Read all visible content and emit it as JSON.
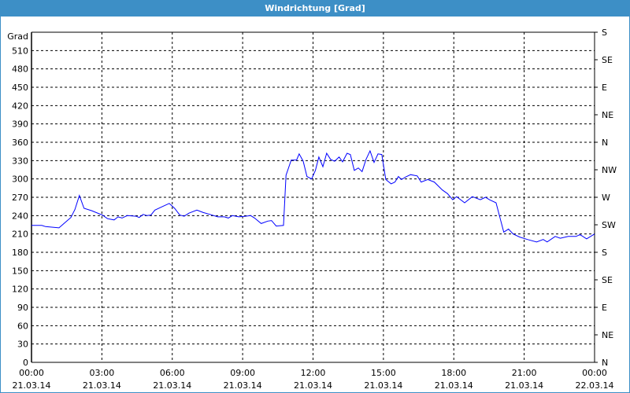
{
  "window": {
    "title": "Windrichtung [Grad]"
  },
  "chart_data": {
    "type": "line",
    "title": "Windrichtung [Grad]",
    "ylabel": "Grad",
    "xlabel": "",
    "ylim": [
      0,
      540
    ],
    "xlim_hours": [
      0,
      24
    ],
    "grid": true,
    "y_ticks": [
      0,
      30,
      60,
      90,
      120,
      150,
      180,
      210,
      240,
      270,
      300,
      330,
      360,
      390,
      420,
      450,
      480,
      510
    ],
    "right_axis_ticks": [
      {
        "value": 0,
        "label": "N"
      },
      {
        "value": 45,
        "label": "NE"
      },
      {
        "value": 90,
        "label": "E"
      },
      {
        "value": 135,
        "label": "SE"
      },
      {
        "value": 180,
        "label": "S"
      },
      {
        "value": 225,
        "label": "SW"
      },
      {
        "value": 270,
        "label": "W"
      },
      {
        "value": 315,
        "label": "NW"
      },
      {
        "value": 360,
        "label": "N"
      },
      {
        "value": 405,
        "label": "NE"
      },
      {
        "value": 450,
        "label": "E"
      },
      {
        "value": 495,
        "label": "SE"
      },
      {
        "value": 540,
        "label": "S"
      }
    ],
    "x_ticks": [
      {
        "hour": 0,
        "time": "00:00",
        "date": "21.03.14"
      },
      {
        "hour": 3,
        "time": "03:00",
        "date": "21.03.14"
      },
      {
        "hour": 6,
        "time": "06:00",
        "date": "21.03.14"
      },
      {
        "hour": 9,
        "time": "09:00",
        "date": "21.03.14"
      },
      {
        "hour": 12,
        "time": "12:00",
        "date": "21.03.14"
      },
      {
        "hour": 15,
        "time": "15:00",
        "date": "21.03.14"
      },
      {
        "hour": 18,
        "time": "18:00",
        "date": "21.03.14"
      },
      {
        "hour": 21,
        "time": "21:00",
        "date": "21.03.14"
      },
      {
        "hour": 24,
        "time": "00:00",
        "date": "22.03.14"
      }
    ],
    "series_color": "#0000ff",
    "series": [
      {
        "points": [
          [
            0,
            224
          ],
          [
            0.44,
            224
          ],
          [
            0.6,
            222
          ],
          [
            1.17,
            220
          ],
          [
            1.44,
            229
          ],
          [
            1.68,
            237
          ],
          [
            1.85,
            250
          ],
          [
            2.04,
            273
          ],
          [
            2.24,
            252
          ],
          [
            2.57,
            248
          ],
          [
            3.02,
            241
          ],
          [
            3.24,
            235
          ],
          [
            3.52,
            233
          ],
          [
            3.69,
            238
          ],
          [
            3.86,
            236
          ],
          [
            4.08,
            240
          ],
          [
            4.46,
            239
          ],
          [
            4.59,
            237
          ],
          [
            4.76,
            242
          ],
          [
            4.92,
            240
          ],
          [
            5.09,
            241
          ],
          [
            5.26,
            249
          ],
          [
            5.59,
            255
          ],
          [
            5.87,
            260
          ],
          [
            6.1,
            252
          ],
          [
            6.32,
            241
          ],
          [
            6.51,
            239
          ],
          [
            6.71,
            244
          ],
          [
            7.05,
            249
          ],
          [
            7.32,
            245
          ],
          [
            7.61,
            242
          ],
          [
            7.94,
            238
          ],
          [
            8.22,
            238
          ],
          [
            8.39,
            236
          ],
          [
            8.56,
            240
          ],
          [
            8.84,
            238
          ],
          [
            9.12,
            239
          ],
          [
            9.34,
            240
          ],
          [
            9.51,
            236
          ],
          [
            9.79,
            227
          ],
          [
            10.07,
            231
          ],
          [
            10.23,
            232
          ],
          [
            10.43,
            223
          ],
          [
            10.74,
            224
          ],
          [
            10.85,
            306
          ],
          [
            11.07,
            331
          ],
          [
            11.3,
            331
          ],
          [
            11.41,
            341
          ],
          [
            11.58,
            329
          ],
          [
            11.74,
            304
          ],
          [
            11.94,
            300
          ],
          [
            12.1,
            314
          ],
          [
            12.25,
            336
          ],
          [
            12.42,
            320
          ],
          [
            12.58,
            342
          ],
          [
            12.75,
            332
          ],
          [
            12.92,
            329
          ],
          [
            13.11,
            336
          ],
          [
            13.26,
            328
          ],
          [
            13.45,
            342
          ],
          [
            13.59,
            340
          ],
          [
            13.76,
            314
          ],
          [
            13.93,
            318
          ],
          [
            14.09,
            312
          ],
          [
            14.26,
            332
          ],
          [
            14.43,
            346
          ],
          [
            14.6,
            327
          ],
          [
            14.77,
            341
          ],
          [
            14.93,
            340
          ],
          [
            15.1,
            299
          ],
          [
            15.33,
            292
          ],
          [
            15.49,
            295
          ],
          [
            15.64,
            304
          ],
          [
            15.77,
            299
          ],
          [
            15.94,
            303
          ],
          [
            16.16,
            307
          ],
          [
            16.44,
            305
          ],
          [
            16.61,
            295
          ],
          [
            16.89,
            299
          ],
          [
            17.17,
            295
          ],
          [
            17.51,
            282
          ],
          [
            17.73,
            276
          ],
          [
            17.95,
            266
          ],
          [
            18.12,
            271
          ],
          [
            18.46,
            261
          ],
          [
            18.79,
            271
          ],
          [
            19.13,
            266
          ],
          [
            19.35,
            270
          ],
          [
            19.52,
            266
          ],
          [
            19.8,
            261
          ],
          [
            20.13,
            213
          ],
          [
            20.33,
            218
          ],
          [
            20.53,
            210
          ],
          [
            20.81,
            205
          ],
          [
            21.14,
            201
          ],
          [
            21.53,
            197
          ],
          [
            21.81,
            201
          ],
          [
            21.98,
            197
          ],
          [
            22.32,
            206
          ],
          [
            22.54,
            203
          ],
          [
            22.88,
            206
          ],
          [
            23.21,
            206
          ],
          [
            23.38,
            209
          ],
          [
            23.66,
            202
          ],
          [
            24,
            210
          ]
        ]
      }
    ]
  }
}
